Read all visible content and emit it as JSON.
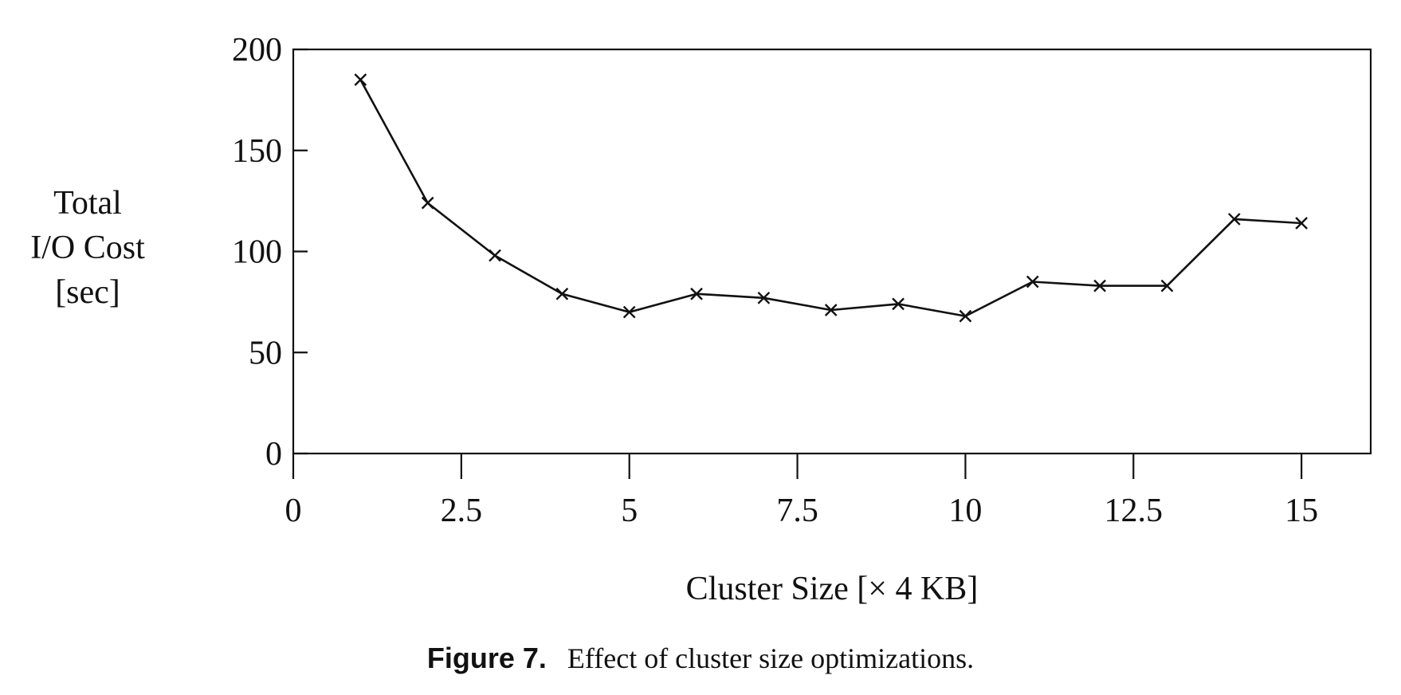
{
  "chart_data": {
    "type": "line",
    "title": "",
    "xlabel": "Cluster Size [× 4 KB]",
    "ylabel_lines": [
      "Total",
      "I/O Cost",
      "[sec]"
    ],
    "xlim": [
      0,
      16
    ],
    "ylim": [
      0,
      200
    ],
    "x_ticks": [
      0,
      2.5,
      5,
      7.5,
      10,
      12.5,
      15
    ],
    "x_tick_labels": [
      "0",
      "2.5",
      "5",
      "7.5",
      "10",
      "12.5",
      "15"
    ],
    "y_ticks": [
      0,
      50,
      100,
      150,
      200
    ],
    "y_tick_labels": [
      "0",
      "50",
      "100",
      "150",
      "200"
    ],
    "marker": "x",
    "grid": false,
    "legend": "none",
    "line_color": "#111111",
    "series": [
      {
        "x": [
          1,
          2,
          3,
          4,
          5,
          6,
          7,
          8,
          9,
          10,
          11,
          12,
          13,
          14,
          15
        ],
        "values": [
          185,
          124,
          98,
          79,
          70,
          79,
          77,
          71,
          74,
          68,
          85,
          83,
          83,
          116,
          114
        ]
      }
    ]
  },
  "caption": {
    "label": "Figure 7.",
    "text": "Effect of cluster size optimizations."
  }
}
